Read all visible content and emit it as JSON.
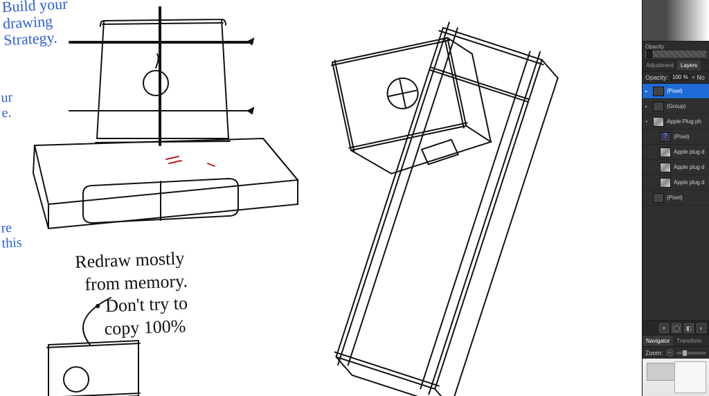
{
  "canvas": {
    "background": "#ffffff",
    "notes": {
      "blue1": "Build your\ndrawing\nStrategy.",
      "blue2": "ur\ne.",
      "blue3": "re\nthis",
      "black1": "Redraw mostly\n  from memory.\n    • Don't try to\n      copy 100%"
    },
    "stroke_color": "#111111",
    "accent_red": "#c21b1b"
  },
  "panel": {
    "opacity_label": "Opacity",
    "tabs": {
      "adjustment": "Adjustment",
      "layers": "Layers"
    },
    "opacity_row": {
      "label": "Opacity:",
      "value": "100 %",
      "blend": "No"
    },
    "layers": [
      {
        "name": "(Pixel)",
        "selected": true,
        "arrow": "▸",
        "thumb": "empty",
        "indent": false
      },
      {
        "name": "(Group)",
        "selected": false,
        "arrow": "▸",
        "thumb": "empty",
        "indent": false
      },
      {
        "name": "Apple Plug ph",
        "selected": false,
        "arrow": "▾",
        "thumb": "photo",
        "indent": false
      },
      {
        "name": "(Pixel)",
        "selected": false,
        "arrow": "",
        "thumb": "bluebr",
        "indent": true
      },
      {
        "name": "Apple plug d",
        "selected": false,
        "arrow": "",
        "thumb": "photo",
        "indent": true
      },
      {
        "name": "Apple plug d",
        "selected": false,
        "arrow": "",
        "thumb": "photo",
        "indent": true
      },
      {
        "name": "Apple plug d",
        "selected": false,
        "arrow": "",
        "thumb": "photo",
        "indent": true
      },
      {
        "name": "(Pixel)",
        "selected": false,
        "arrow": "",
        "thumb": "empty",
        "indent": false
      }
    ],
    "navigator_tabs": {
      "navigator": "Navigator",
      "transform": "Transform"
    },
    "zoom_label": "Zoom:"
  }
}
